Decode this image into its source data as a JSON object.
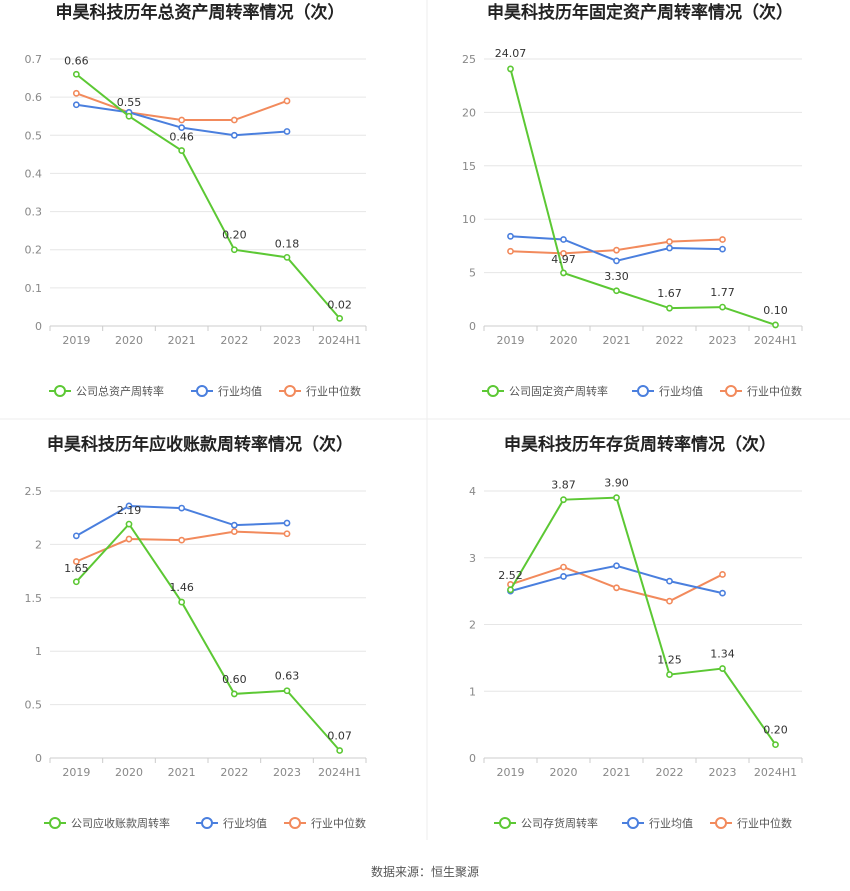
{
  "colors": {
    "company": "#5cc834",
    "industry_avg": "#4a7fde",
    "industry_median": "#f28a5c"
  },
  "footer": {
    "source": "数据来源：恒生聚源"
  },
  "chart_data": [
    {
      "type": "line",
      "title": "申昊科技历年总资产周转率情况（次）",
      "categories": [
        "2019",
        "2020",
        "2021",
        "2022",
        "2023",
        "2024H1"
      ],
      "ylim": [
        0,
        0.7
      ],
      "yticks": [
        "0",
        "0.1",
        "0.2",
        "0.3",
        "0.4",
        "0.5",
        "0.6",
        "0.7"
      ],
      "series": [
        {
          "name": "公司总资产周转率",
          "values": [
            0.66,
            0.55,
            0.46,
            0.2,
            0.18,
            0.02
          ],
          "labels": [
            "0.66",
            "0.55",
            "0.46",
            "0.20",
            "0.18",
            "0.02"
          ]
        },
        {
          "name": "行业均值",
          "values": [
            0.58,
            0.56,
            0.52,
            0.5,
            0.51,
            null
          ]
        },
        {
          "name": "行业中位数",
          "values": [
            0.61,
            0.56,
            0.54,
            0.54,
            0.59,
            null
          ]
        }
      ]
    },
    {
      "type": "line",
      "title": "申昊科技历年固定资产周转率情况（次）",
      "categories": [
        "2019",
        "2020",
        "2021",
        "2022",
        "2023",
        "2024H1"
      ],
      "ylim": [
        0,
        25
      ],
      "yticks": [
        "0",
        "5",
        "10",
        "15",
        "20",
        "25"
      ],
      "series": [
        {
          "name": "公司固定资产周转率",
          "values": [
            24.07,
            4.97,
            3.3,
            1.67,
            1.77,
            0.1
          ],
          "labels": [
            "24.07",
            "4.97",
            "3.30",
            "1.67",
            "1.77",
            "0.10"
          ]
        },
        {
          "name": "行业均值",
          "values": [
            8.4,
            8.1,
            6.1,
            7.3,
            7.2,
            null
          ]
        },
        {
          "name": "行业中位数",
          "values": [
            7.0,
            6.8,
            7.1,
            7.9,
            8.1,
            null
          ]
        }
      ]
    },
    {
      "type": "line",
      "title": "申昊科技历年应收账款周转率情况（次）",
      "categories": [
        "2019",
        "2020",
        "2021",
        "2022",
        "2023",
        "2024H1"
      ],
      "ylim": [
        0,
        2.5
      ],
      "yticks": [
        "0",
        "0.5",
        "1",
        "1.5",
        "2",
        "2.5"
      ],
      "series": [
        {
          "name": "公司应收账款周转率",
          "values": [
            1.65,
            2.19,
            1.46,
            0.6,
            0.63,
            0.07
          ],
          "labels": [
            "1.65",
            "2.19",
            "1.46",
            "0.60",
            "0.63",
            "0.07"
          ]
        },
        {
          "name": "行业均值",
          "values": [
            2.08,
            2.36,
            2.34,
            2.18,
            2.2,
            null
          ]
        },
        {
          "name": "行业中位数",
          "values": [
            1.84,
            2.05,
            2.04,
            2.12,
            2.1,
            null
          ]
        }
      ]
    },
    {
      "type": "line",
      "title": "申昊科技历年存货周转率情况（次）",
      "categories": [
        "2019",
        "2020",
        "2021",
        "2022",
        "2023",
        "2024H1"
      ],
      "ylim": [
        0,
        4
      ],
      "yticks": [
        "0",
        "1",
        "2",
        "3",
        "4"
      ],
      "series": [
        {
          "name": "公司存货周转率",
          "values": [
            2.52,
            3.87,
            3.9,
            1.25,
            1.34,
            0.2
          ],
          "labels": [
            "2.52",
            "3.87",
            "3.90",
            "1.25",
            "1.34",
            "0.20"
          ]
        },
        {
          "name": "行业均值",
          "values": [
            2.5,
            2.72,
            2.88,
            2.65,
            2.47,
            null
          ]
        },
        {
          "name": "行业中位数",
          "values": [
            2.6,
            2.86,
            2.55,
            2.35,
            2.75,
            null
          ]
        }
      ]
    }
  ]
}
